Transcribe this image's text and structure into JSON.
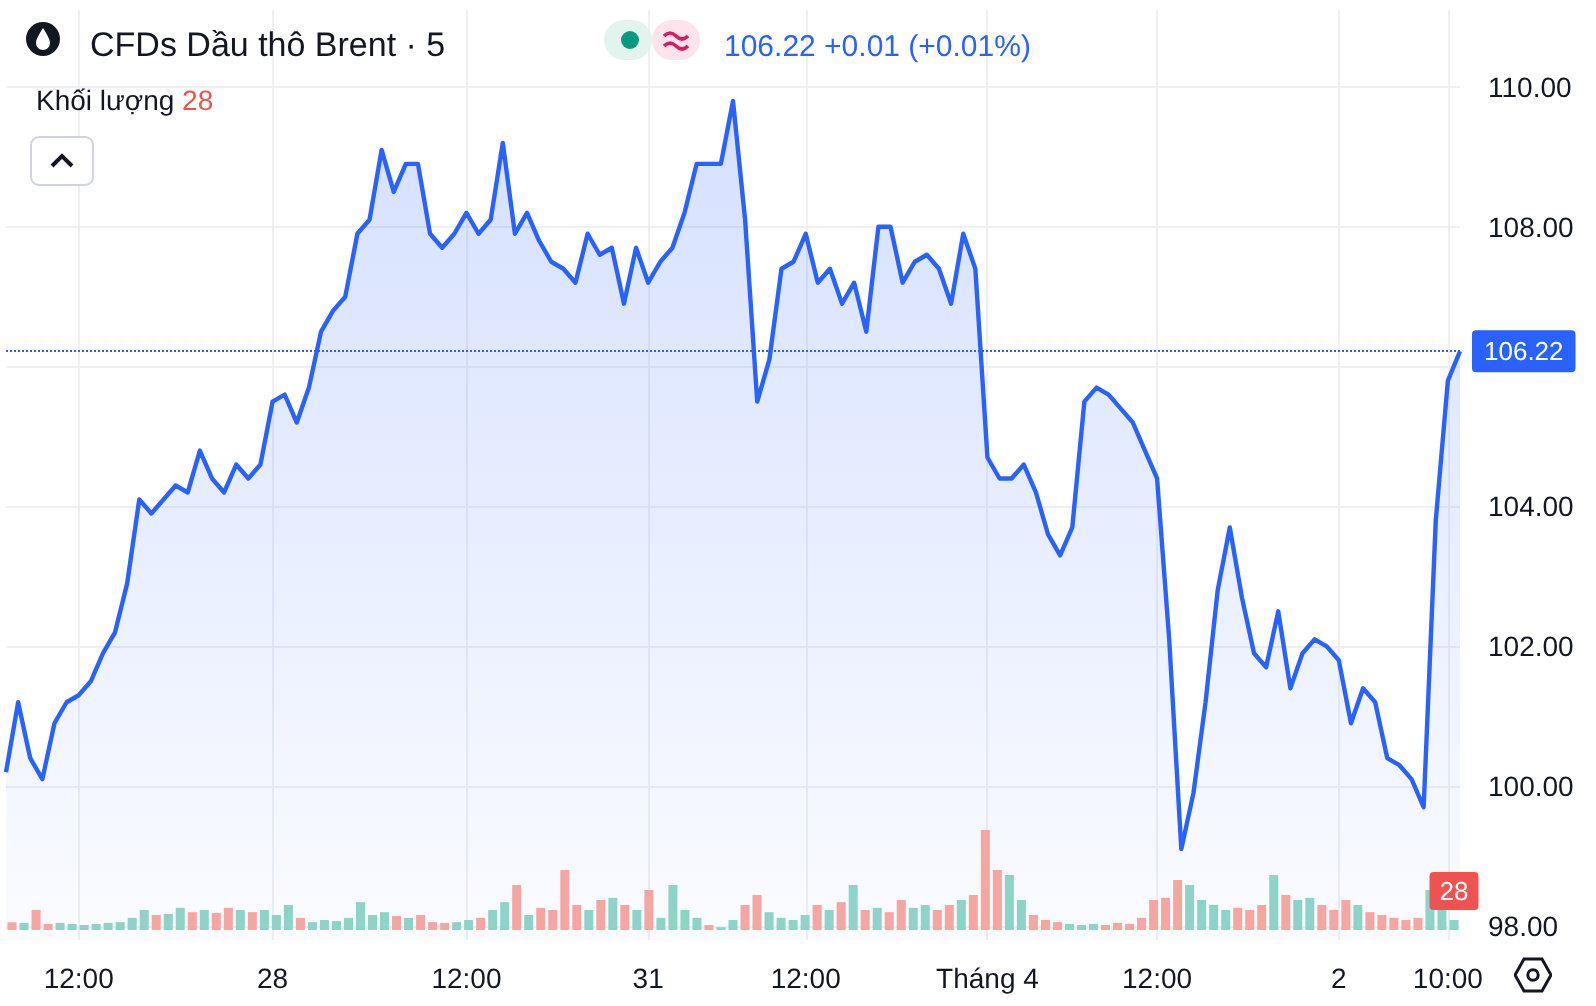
{
  "chart_data": [
    {
      "type": "area",
      "title": "CFDs Dầu thô Brent · 5",
      "subtitle": "106.22 +0.01 (+0.01%)",
      "color": "#2962ff",
      "categories": [
        null,
        null,
        null,
        null,
        null,
        null,
        "12:00",
        null,
        null,
        null,
        null,
        null,
        null,
        null,
        null,
        null,
        null,
        null,
        null,
        null,
        null,
        null,
        "28",
        null,
        null,
        null,
        null,
        null,
        null,
        null,
        null,
        null,
        null,
        null,
        null,
        null,
        null,
        null,
        "12:00",
        null,
        null,
        null,
        null,
        null,
        null,
        null,
        null,
        null,
        null,
        null,
        null,
        null,
        null,
        "31",
        null,
        null,
        null,
        null,
        null,
        null,
        null,
        null,
        null,
        null,
        null,
        null,
        "12:00",
        null,
        null,
        null,
        null,
        null,
        null,
        null,
        null,
        null,
        null,
        null,
        null,
        null,
        null,
        "Tháng 4",
        null,
        null,
        null,
        null,
        null,
        null,
        null,
        null,
        null,
        null,
        null,
        null,
        null,
        "12:00",
        null,
        null,
        null,
        null,
        null,
        null,
        null,
        null,
        null,
        null,
        null,
        null,
        null,
        null,
        "2",
        null,
        null,
        null,
        null,
        null,
        null,
        null,
        null,
        "10:00",
        null
      ],
      "values": [
        100.2,
        101.2,
        100.4,
        100.1,
        100.9,
        101.2,
        101.3,
        101.5,
        101.9,
        102.2,
        102.9,
        104.1,
        103.9,
        104.1,
        104.3,
        104.2,
        104.8,
        104.4,
        104.2,
        104.6,
        104.4,
        104.6,
        105.5,
        105.6,
        105.2,
        105.7,
        106.5,
        106.8,
        107.0,
        107.9,
        108.1,
        109.1,
        108.5,
        108.9,
        108.9,
        107.9,
        107.7,
        107.9,
        108.2,
        107.9,
        108.1,
        109.2,
        107.9,
        108.2,
        107.8,
        107.5,
        107.4,
        107.2,
        107.9,
        107.6,
        107.7,
        106.9,
        107.7,
        107.2,
        107.5,
        107.7,
        108.2,
        108.9,
        108.9,
        108.9,
        109.8,
        108.1,
        105.5,
        106.1,
        107.4,
        107.5,
        107.9,
        107.2,
        107.4,
        106.9,
        107.2,
        106.5,
        108.0,
        108.0,
        107.2,
        107.5,
        107.6,
        107.4,
        106.9,
        107.9,
        107.4,
        104.7,
        104.4,
        104.4,
        104.6,
        104.2,
        103.6,
        103.3,
        103.7,
        105.5,
        105.7,
        105.6,
        105.4,
        105.2,
        104.8,
        104.4,
        102.1,
        99.1,
        99.9,
        101.2,
        102.8,
        103.7,
        102.7,
        101.9,
        101.7,
        102.5,
        101.4,
        101.9,
        102.1,
        102.0,
        101.8,
        100.9,
        101.4,
        101.2,
        100.4,
        100.3,
        100.1,
        99.7,
        103.8,
        105.8,
        106.22
      ],
      "ylim": [
        97.8,
        111.1
      ],
      "yticks": [
        {
          "value": 98,
          "label": "98.00"
        },
        {
          "value": 100,
          "label": "100.00"
        },
        {
          "value": 102,
          "label": "102.00"
        },
        {
          "value": 104,
          "label": "104.00"
        },
        {
          "value": 106,
          "label": null
        },
        {
          "value": 108,
          "label": "108.00"
        },
        {
          "value": 110,
          "label": "110.00"
        }
      ],
      "ref_lines": [
        {
          "axis": "y",
          "value": 106.22,
          "label": "106.22",
          "color": "#2962ff",
          "line_style": "dotted"
        }
      ],
      "grid": true
    },
    {
      "type": "bar",
      "title": "Khối lượng",
      "ylim": [
        0,
        280
      ],
      "categories": [
        null,
        null,
        null,
        null,
        null,
        null,
        null,
        null,
        null,
        null,
        null,
        null,
        null,
        null,
        null,
        null,
        null,
        null,
        null,
        null,
        null,
        null,
        null,
        null,
        null,
        null,
        null,
        null,
        null,
        null,
        null,
        null,
        null,
        null,
        null,
        null,
        null,
        null,
        null,
        null,
        null,
        null,
        null,
        null,
        null,
        null,
        null,
        null,
        null,
        null,
        null,
        null,
        null,
        null,
        null,
        null,
        null,
        null,
        null,
        null,
        null,
        null,
        null,
        null,
        null,
        null,
        null,
        null,
        null,
        null,
        null,
        null,
        null,
        null,
        null,
        null,
        null,
        null,
        null,
        null,
        null,
        null,
        null,
        null,
        null,
        null,
        null,
        null,
        null,
        null,
        null,
        null,
        null,
        null,
        null,
        null,
        null,
        null,
        null,
        null,
        null,
        null,
        null,
        null,
        null,
        null,
        null,
        null,
        null,
        null,
        null,
        null,
        null,
        null,
        null,
        null,
        null,
        null,
        null,
        null,
        null
      ],
      "values": [
        22,
        20,
        56,
        17,
        20,
        17,
        14,
        17,
        20,
        22,
        34,
        56,
        42,
        45,
        62,
        50,
        56,
        48,
        62,
        56,
        50,
        56,
        42,
        70,
        34,
        22,
        28,
        25,
        34,
        78,
        42,
        50,
        39,
        34,
        42,
        22,
        20,
        22,
        28,
        34,
        56,
        78,
        126,
        42,
        62,
        56,
        168,
        70,
        56,
        84,
        90,
        70,
        56,
        112,
        34,
        126,
        56,
        34,
        14,
        8,
        28,
        70,
        98,
        50,
        34,
        28,
        42,
        70,
        56,
        78,
        126,
        56,
        62,
        50,
        84,
        62,
        70,
        56,
        70,
        84,
        98,
        280,
        168,
        154,
        84,
        42,
        28,
        22,
        17,
        14,
        17,
        14,
        20,
        17,
        34,
        84,
        90,
        140,
        126,
        84,
        70,
        56,
        62,
        56,
        70,
        154,
        98,
        84,
        90,
        70,
        56,
        84,
        70,
        50,
        42,
        34,
        28,
        34,
        112,
        56,
        28
      ],
      "colors": [
        "#f4a6a3",
        "#8fd3c8",
        "#f4a6a3",
        "#f4a6a3",
        "#8fd3c8",
        "#8fd3c8",
        "#8fd3c8",
        "#8fd3c8",
        "#8fd3c8",
        "#8fd3c8",
        "#8fd3c8",
        "#8fd3c8",
        "#f4a6a3",
        "#8fd3c8",
        "#8fd3c8",
        "#f4a6a3",
        "#8fd3c8",
        "#f4a6a3",
        "#f4a6a3",
        "#8fd3c8",
        "#f4a6a3",
        "#8fd3c8",
        "#8fd3c8",
        "#8fd3c8",
        "#f4a6a3",
        "#8fd3c8",
        "#8fd3c8",
        "#8fd3c8",
        "#8fd3c8",
        "#8fd3c8",
        "#8fd3c8",
        "#8fd3c8",
        "#f4a6a3",
        "#8fd3c8",
        "#f4a6a3",
        "#f4a6a3",
        "#f4a6a3",
        "#8fd3c8",
        "#8fd3c8",
        "#f4a6a3",
        "#8fd3c8",
        "#8fd3c8",
        "#f4a6a3",
        "#8fd3c8",
        "#f4a6a3",
        "#f4a6a3",
        "#f4a6a3",
        "#f4a6a3",
        "#8fd3c8",
        "#f4a6a3",
        "#8fd3c8",
        "#f4a6a3",
        "#8fd3c8",
        "#f4a6a3",
        "#8fd3c8",
        "#8fd3c8",
        "#8fd3c8",
        "#8fd3c8",
        "#f4a6a3",
        "#8fd3c8",
        "#8fd3c8",
        "#f4a6a3",
        "#f4a6a3",
        "#8fd3c8",
        "#8fd3c8",
        "#8fd3c8",
        "#8fd3c8",
        "#f4a6a3",
        "#8fd3c8",
        "#f4a6a3",
        "#8fd3c8",
        "#f4a6a3",
        "#8fd3c8",
        "#f4a6a3",
        "#f4a6a3",
        "#8fd3c8",
        "#8fd3c8",
        "#f4a6a3",
        "#f4a6a3",
        "#8fd3c8",
        "#f4a6a3",
        "#f4a6a3",
        "#f4a6a3",
        "#8fd3c8",
        "#8fd3c8",
        "#f4a6a3",
        "#f4a6a3",
        "#f4a6a3",
        "#8fd3c8",
        "#8fd3c8",
        "#8fd3c8",
        "#f4a6a3",
        "#f4a6a3",
        "#f4a6a3",
        "#f4a6a3",
        "#f4a6a3",
        "#f4a6a3",
        "#f4a6a3",
        "#8fd3c8",
        "#8fd3c8",
        "#8fd3c8",
        "#8fd3c8",
        "#f4a6a3",
        "#f4a6a3",
        "#f4a6a3",
        "#8fd3c8",
        "#f4a6a3",
        "#8fd3c8",
        "#8fd3c8",
        "#f4a6a3",
        "#f4a6a3",
        "#f4a6a3",
        "#8fd3c8",
        "#f4a6a3",
        "#f4a6a3",
        "#f4a6a3",
        "#f4a6a3",
        "#f4a6a3",
        "#8fd3c8",
        "#8fd3c8",
        "#8fd3c8"
      ],
      "value_labels": [
        null,
        null,
        null,
        null,
        null,
        null,
        null,
        null,
        null,
        null,
        null,
        null,
        null,
        null,
        null,
        null,
        null,
        null,
        null,
        null,
        null,
        null,
        null,
        null,
        null,
        null,
        null,
        null,
        null,
        null,
        null,
        null,
        null,
        null,
        null,
        null,
        null,
        null,
        null,
        null,
        null,
        null,
        null,
        null,
        null,
        null,
        null,
        null,
        null,
        null,
        null,
        null,
        null,
        null,
        null,
        null,
        null,
        null,
        null,
        null,
        null,
        null,
        null,
        null,
        null,
        null,
        null,
        null,
        null,
        null,
        null,
        null,
        null,
        null,
        null,
        null,
        null,
        null,
        null,
        null,
        null,
        null,
        null,
        null,
        null,
        null,
        null,
        null,
        null,
        null,
        null,
        null,
        null,
        null,
        null,
        null,
        null,
        null,
        null,
        null,
        null,
        null,
        null,
        null,
        null,
        null,
        null,
        null,
        null,
        null,
        null,
        null,
        null,
        null,
        null,
        null,
        null,
        null,
        null,
        null,
        "28"
      ]
    }
  ]
}
